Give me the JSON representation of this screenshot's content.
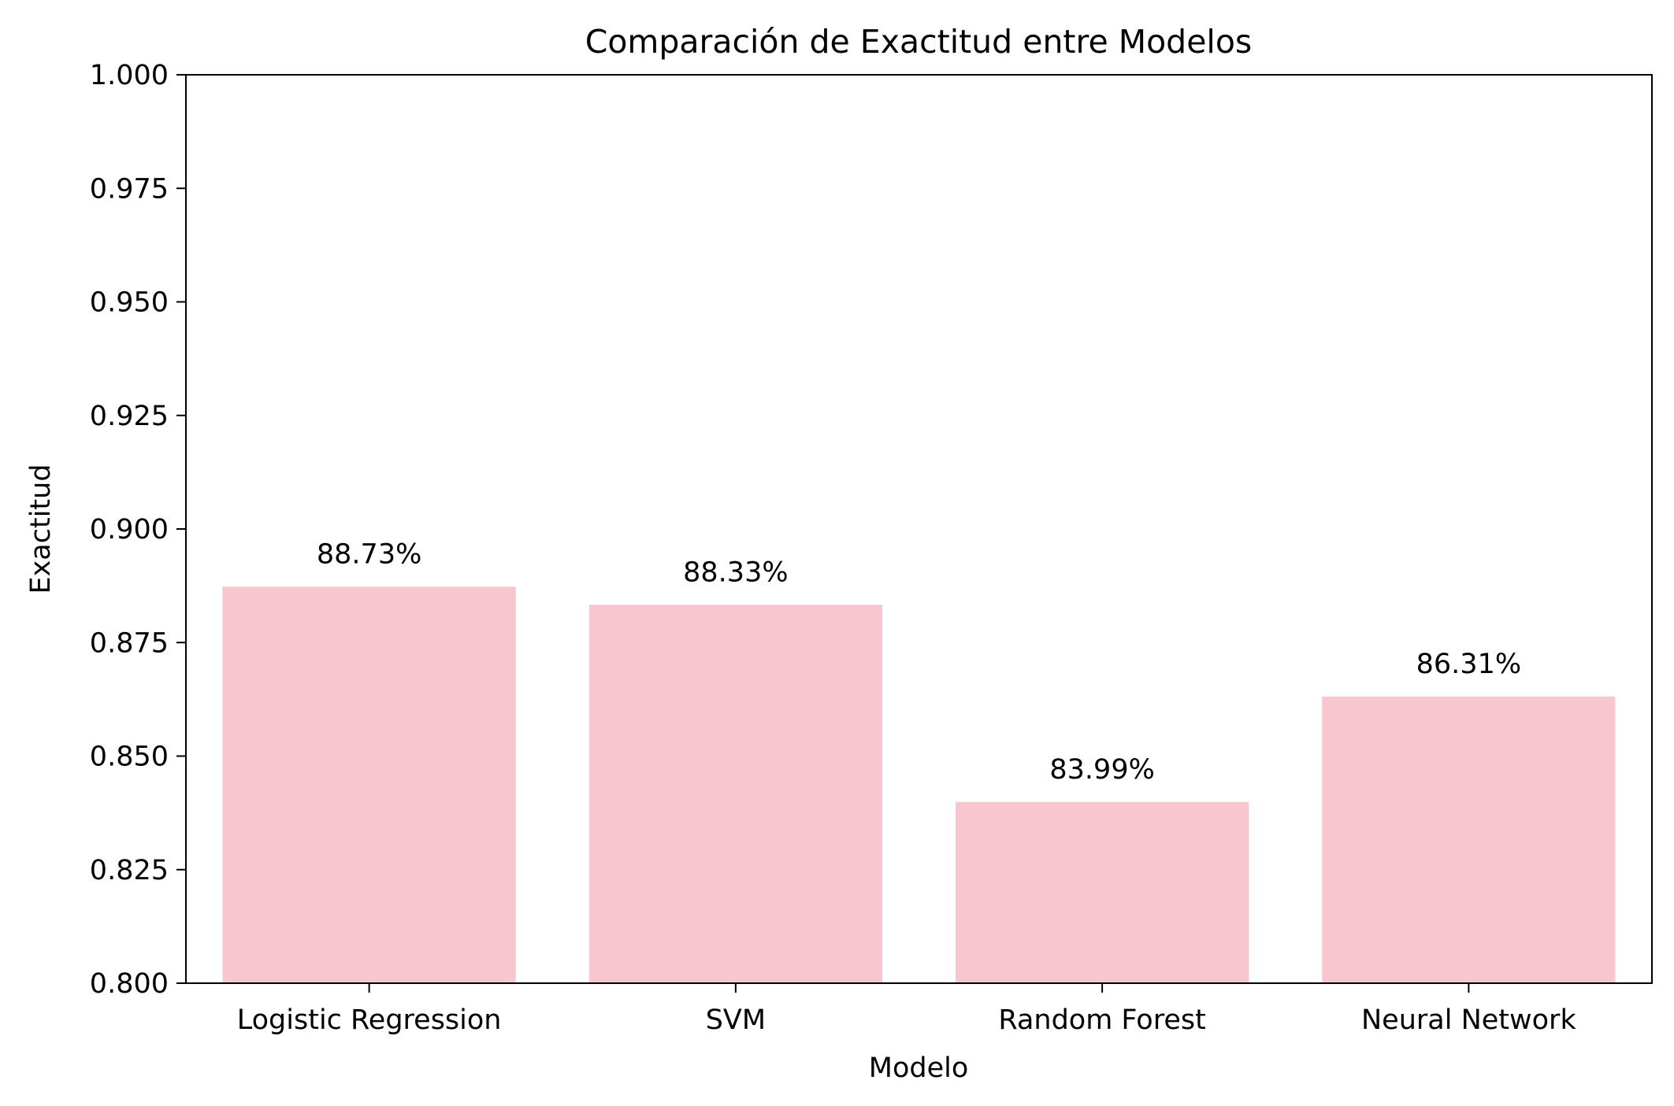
{
  "chart_data": {
    "type": "bar",
    "title": "Comparación de Exactitud entre Modelos",
    "xlabel": "Modelo",
    "ylabel": "Exactitud",
    "categories": [
      "Logistic Regression",
      "SVM",
      "Random Forest",
      "Neural Network"
    ],
    "values": [
      0.8873,
      0.8833,
      0.8399,
      0.8631
    ],
    "data_labels": [
      "88.73%",
      "88.33%",
      "83.99%",
      "86.31%"
    ],
    "ylim": [
      0.8,
      1.0
    ],
    "yticks": [
      "0.800",
      "0.825",
      "0.850",
      "0.875",
      "0.900",
      "0.925",
      "0.950",
      "0.975",
      "1.000"
    ],
    "bar_color": "#f7c6cf",
    "grid": false,
    "legend": "none"
  }
}
